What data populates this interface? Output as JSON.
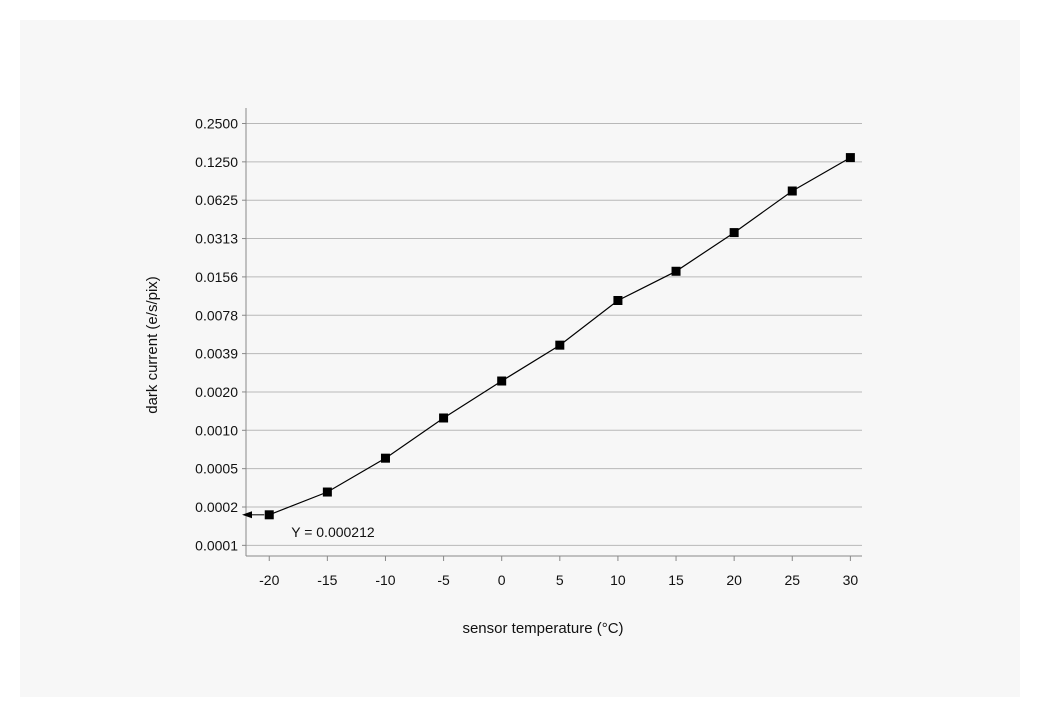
{
  "chart_data": {
    "type": "line",
    "title": "",
    "xlabel": "sensor temperature (°C)",
    "ylabel": "dark current (e/s/pix)",
    "yscale": "log2",
    "grid": {
      "horizontal": true,
      "vertical": false
    },
    "legend": "none",
    "x_ticks": [
      "-20",
      "-15",
      "-10",
      "-5",
      "0",
      "5",
      "10",
      "15",
      "20",
      "25",
      "30"
    ],
    "x_tick_values": [
      -20,
      -15,
      -10,
      -5,
      0,
      5,
      10,
      15,
      20,
      25,
      30
    ],
    "y_ticks": [
      "0.0001",
      "0.0002",
      "0.0005",
      "0.0010",
      "0.0020",
      "0.0039",
      "0.0078",
      "0.0156",
      "0.0313",
      "0.0625",
      "0.1250",
      "0.2500"
    ],
    "y_tick_values": [
      0.0001220703125,
      0.000244140625,
      0.00048828125,
      0.0009765625,
      0.001953125,
      0.00390625,
      0.0078125,
      0.015625,
      0.03125,
      0.0625,
      0.125,
      0.25
    ],
    "series": [
      {
        "x": [
          -20,
          -15,
          -10,
          -5,
          0,
          5,
          10,
          15,
          20,
          25,
          30
        ],
        "y": [
          0.000212,
          0.00032,
          0.00059,
          0.00122,
          0.00238,
          0.00455,
          0.0102,
          0.0173,
          0.0348,
          0.0738,
          0.135
        ]
      }
    ],
    "annotations": [
      {
        "text": "Y = 0.000212",
        "x": -20,
        "y": 0.000212
      }
    ],
    "colors": {
      "line": "#000000",
      "marker": "#000000",
      "grid": "#b8b8b8",
      "axis": "#888888",
      "background": "#f7f7f7"
    }
  }
}
